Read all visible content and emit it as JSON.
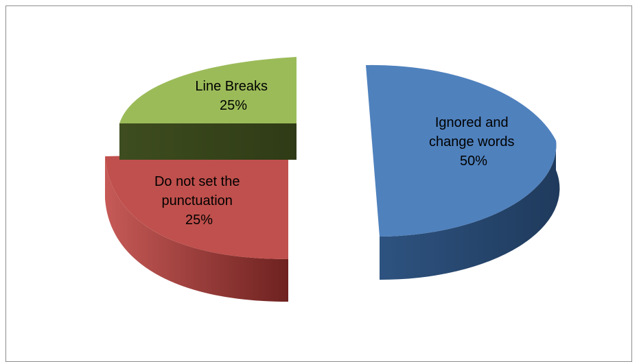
{
  "chart_data": {
    "type": "pie",
    "title": "",
    "slices": [
      {
        "label": "Ignored and change words",
        "label_lines": [
          "Ignored and",
          "change words"
        ],
        "value": 50,
        "value_label": "50%",
        "color": "#4f81bd",
        "side_color": "#2c4d76"
      },
      {
        "label": "Do not set the punctuation",
        "label_lines": [
          "Do not set the",
          "punctuation"
        ],
        "value": 25,
        "value_label": "25%",
        "color": "#c0504d",
        "side_color": "#7a2a28"
      },
      {
        "label": "Line Breaks",
        "label_lines": [
          "Line Breaks"
        ],
        "value": 25,
        "value_label": "25%",
        "color": "#9bbb59",
        "side_color": "#3c4b1d"
      }
    ],
    "exploded": true,
    "three_d": true,
    "legend": "none"
  }
}
